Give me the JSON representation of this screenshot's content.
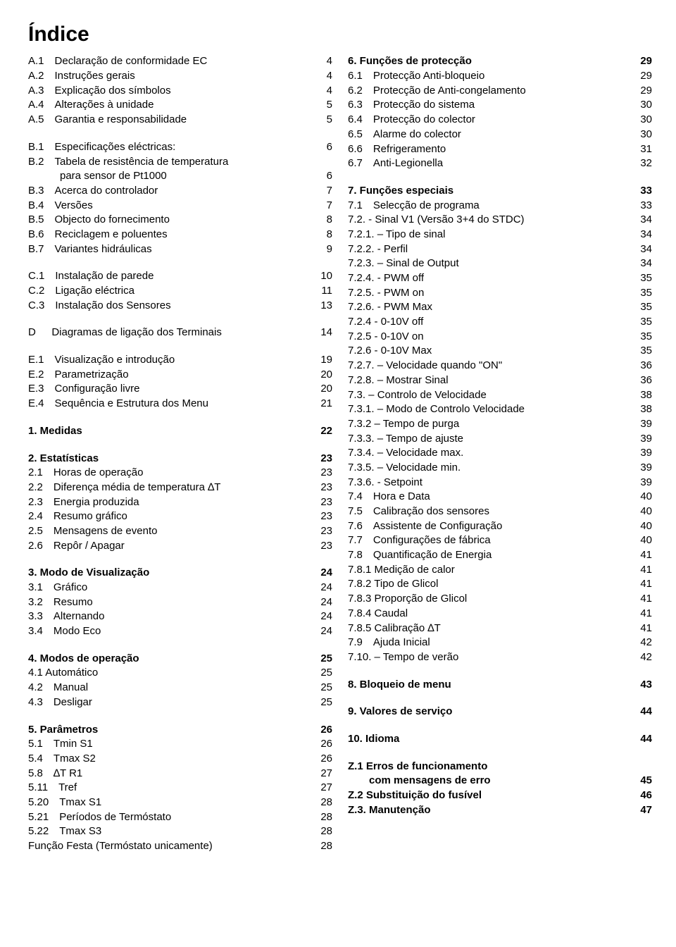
{
  "title": "Índice",
  "left": [
    {
      "label": "A.1 Declaração de conformidade EC",
      "page": "4",
      "bold": false
    },
    {
      "label": "A.2 Instruções gerais",
      "page": "4",
      "bold": false
    },
    {
      "label": "A.3 Explicação dos símbolos",
      "page": "4",
      "bold": false
    },
    {
      "label": "A.4 Alterações à unidade",
      "page": "5",
      "bold": false
    },
    {
      "label": "A.5 Garantia e responsabilidade",
      "page": "5",
      "bold": false
    },
    {
      "gap": true
    },
    {
      "label": "B.1 Especificações eléctricas:",
      "page": "6",
      "bold": false
    },
    {
      "label": "B.2 Tabela de resistência de temperatura",
      "page": "",
      "bold": false
    },
    {
      "label": "   para sensor de Pt1000",
      "page": "6",
      "bold": false
    },
    {
      "label": "B.3 Acerca do controlador",
      "page": "7",
      "bold": false
    },
    {
      "label": "B.4 Versões",
      "page": "7",
      "bold": false
    },
    {
      "label": "B.5 Objecto do fornecimento",
      "page": "8",
      "bold": false
    },
    {
      "label": "B.6 Reciclagem e poluentes",
      "page": "8",
      "bold": false
    },
    {
      "label": "B.7 Variantes hidráulicas",
      "page": "9",
      "bold": false
    },
    {
      "gap": true
    },
    {
      "label": "C.1 Instalação de parede",
      "page": "10",
      "bold": false
    },
    {
      "label": "C.2 Ligação eléctrica",
      "page": "11",
      "bold": false
    },
    {
      "label": "C.3 Instalação dos Sensores",
      "page": "13",
      "bold": false
    },
    {
      "gap": true
    },
    {
      "label": "D  Diagramas de ligação dos Terminais",
      "page": "14",
      "bold": false
    },
    {
      "gap": true
    },
    {
      "label": "E.1 Visualização e introdução",
      "page": "19",
      "bold": false
    },
    {
      "label": "E.2 Parametrização",
      "page": "20",
      "bold": false
    },
    {
      "label": "E.3 Configuração livre",
      "page": "20",
      "bold": false
    },
    {
      "label": "E.4 Sequência e Estrutura dos Menu",
      "page": "21",
      "bold": false
    },
    {
      "gap": true
    },
    {
      "label": "1. Medidas",
      "page": "22",
      "bold": true
    },
    {
      "gap": true
    },
    {
      "label": "2. Estatísticas",
      "page": "23",
      "bold": true
    },
    {
      "label": "2.1 Horas de operação",
      "page": "23",
      "bold": false
    },
    {
      "label": "2.2 Diferença média de temperatura ∆T",
      "page": "23",
      "bold": false
    },
    {
      "label": "2.3 Energia produzida",
      "page": "23",
      "bold": false
    },
    {
      "label": "2.4 Resumo gráfico",
      "page": "23",
      "bold": false
    },
    {
      "label": "2.5 Mensagens de evento",
      "page": "23",
      "bold": false
    },
    {
      "label": "2.6 Repôr / Apagar",
      "page": "23",
      "bold": false
    },
    {
      "gap": true
    },
    {
      "label": "3. Modo de Visualização",
      "page": "24",
      "bold": true
    },
    {
      "label": "3.1 Gráfico",
      "page": "24",
      "bold": false
    },
    {
      "label": "3.2 Resumo",
      "page": "24",
      "bold": false
    },
    {
      "label": "3.3 Alternando",
      "page": "24",
      "bold": false
    },
    {
      "label": "3.4 Modo Eco",
      "page": "24",
      "bold": false
    },
    {
      "gap": true
    },
    {
      "label": "4. Modos de operação",
      "page": "25",
      "bold": true
    },
    {
      "label": "4.1 Automático",
      "page": "25",
      "bold": false
    },
    {
      "label": "4.2 Manual",
      "page": "25",
      "bold": false
    },
    {
      "label": "4.3 Desligar",
      "page": "25",
      "bold": false
    },
    {
      "gap": true
    },
    {
      "label": "5. Parâmetros",
      "page": "26",
      "bold": true
    },
    {
      "label": "5.1 Tmin S1",
      "page": "26",
      "bold": false
    },
    {
      "label": "5.4 Tmax S2",
      "page": "26",
      "bold": false
    },
    {
      "label": "5.8 ∆T R1",
      "page": "27",
      "bold": false
    },
    {
      "label": "5.11 Tref",
      "page": "27",
      "bold": false
    },
    {
      "label": "5.20 Tmax S1",
      "page": "28",
      "bold": false
    },
    {
      "label": "5.21 Períodos de Termóstato",
      "page": "28",
      "bold": false
    },
    {
      "label": "5.22 Tmax S3",
      "page": "28",
      "bold": false
    },
    {
      "label": "Função Festa (Termóstato unicamente)",
      "page": "28",
      "bold": false
    }
  ],
  "right": [
    {
      "label": "6. Funções de protecção",
      "page": "29",
      "bold": true
    },
    {
      "label": "6.1 Protecção Anti-bloqueio",
      "page": "29",
      "bold": false
    },
    {
      "label": "6.2 Protecção de Anti-congelamento",
      "page": "29",
      "bold": false
    },
    {
      "label": "6.3 Protecção do sistema",
      "page": "30",
      "bold": false
    },
    {
      "label": "6.4 Protecção do colector",
      "page": "30",
      "bold": false
    },
    {
      "label": "6.5 Alarme do colector",
      "page": "30",
      "bold": false
    },
    {
      "label": "6.6 Refrigeramento",
      "page": "31",
      "bold": false
    },
    {
      "label": "6.7 Anti-Legionella",
      "page": "32",
      "bold": false
    },
    {
      "gap": true
    },
    {
      "label": "7. Funções especiais",
      "page": "33",
      "bold": true
    },
    {
      "label": "7.1 Selecção de programa",
      "page": "33",
      "bold": false
    },
    {
      "label": "7.2. - Sinal V1 (Versão 3+4 do STDC)",
      "page": "34",
      "bold": false
    },
    {
      "label": "7.2.1. – Tipo de sinal",
      "page": "34",
      "bold": false
    },
    {
      "label": "7.2.2. - Perfil",
      "page": "34",
      "bold": false
    },
    {
      "label": "7.2.3. – Sinal de Output",
      "page": "34",
      "bold": false
    },
    {
      "label": "7.2.4. - PWM off",
      "page": "35",
      "bold": false
    },
    {
      "label": "7.2.5. - PWM on",
      "page": "35",
      "bold": false
    },
    {
      "label": "7.2.6. - PWM Max",
      "page": "35",
      "bold": false
    },
    {
      "label": "7.2.4 - 0-10V off",
      "page": "35",
      "bold": false
    },
    {
      "label": "7.2.5 - 0-10V on",
      "page": "35",
      "bold": false
    },
    {
      "label": "7.2.6 - 0-10V Max",
      "page": "35",
      "bold": false
    },
    {
      "label": "7.2.7. – Velocidade quando \"ON\"",
      "page": "36",
      "bold": false
    },
    {
      "label": "7.2.8. – Mostrar Sinal",
      "page": "36",
      "bold": false
    },
    {
      "label": "7.3. – Controlo de Velocidade",
      "page": "38",
      "bold": false
    },
    {
      "label": "7.3.1. – Modo de Controlo Velocidade",
      "page": "38",
      "bold": false
    },
    {
      "label": "7.3.2 – Tempo de purga",
      "page": "39",
      "bold": false
    },
    {
      "label": "7.3.3. – Tempo de ajuste",
      "page": "39",
      "bold": false
    },
    {
      "label": "7.3.4. – Velocidade max.",
      "page": "39",
      "bold": false
    },
    {
      "label": "7.3.5. – Velocidade min.",
      "page": "39",
      "bold": false
    },
    {
      "label": "7.3.6. - Setpoint",
      "page": "39",
      "bold": false
    },
    {
      "label": "7.4 Hora e Data",
      "page": "40",
      "bold": false
    },
    {
      "label": "7.5 Calibração dos sensores",
      "page": "40",
      "bold": false
    },
    {
      "label": "7.6 Assistente de Configuração",
      "page": "40",
      "bold": false
    },
    {
      "label": "7.7 Configurações de fábrica",
      "page": "40",
      "bold": false
    },
    {
      "label": "7.8 Quantificação de Energia",
      "page": "41",
      "bold": false
    },
    {
      "label": "7.8.1 Medição de calor",
      "page": "41",
      "bold": false
    },
    {
      "label": "7.8.2 Tipo de Glicol",
      "page": "41",
      "bold": false
    },
    {
      "label": "7.8.3 Proporção de Glicol",
      "page": "41",
      "bold": false
    },
    {
      "label": "7.8.4 Caudal",
      "page": "41",
      "bold": false
    },
    {
      "label": "7.8.5 Calibração ∆T",
      "page": "41",
      "bold": false
    },
    {
      "label": "7.9 Ajuda Inicial",
      "page": "42",
      "bold": false
    },
    {
      "label": "7.10. – Tempo de verão",
      "page": "42",
      "bold": false
    },
    {
      "gap": true
    },
    {
      "label": "8. Bloqueio de menu",
      "page": "43",
      "bold": true
    },
    {
      "gap": true
    },
    {
      "label": "9. Valores de serviço",
      "page": "44",
      "bold": true
    },
    {
      "gap": true
    },
    {
      "label": "10. Idioma",
      "page": "44",
      "bold": true
    },
    {
      "gap": true
    },
    {
      "label": "Z.1 Erros de funcionamento",
      "page": "",
      "bold": true
    },
    {
      "label": "  com mensagens de erro",
      "page": "45",
      "bold": true
    },
    {
      "label": "Z.2 Substituição do fusível",
      "page": "46",
      "bold": true
    },
    {
      "label": "Z.3. Manutenção",
      "page": "47",
      "bold": true
    }
  ]
}
